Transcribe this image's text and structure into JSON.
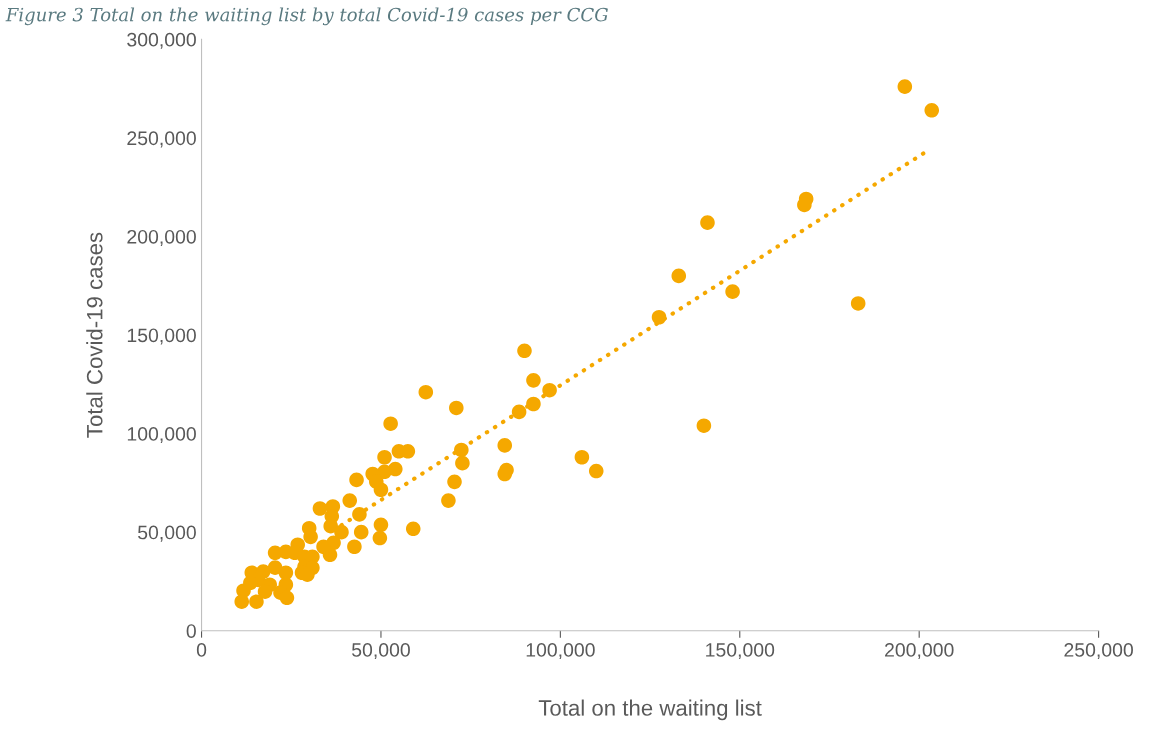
{
  "chart_data": {
    "type": "scatter",
    "title": "Figure 3 Total on the waiting list by total Covid-19 cases per CCG",
    "xlabel": "Total on the waiting list",
    "ylabel": "Total Covid-19 cases",
    "series": [
      {
        "color": "#f5a800",
        "marker": "circle",
        "x": [
          196000,
          203500,
          168500,
          168000,
          141000,
          133000,
          148000,
          183000,
          127500,
          140000,
          90000,
          92500,
          97000,
          92500,
          88500,
          62500,
          71000,
          106000,
          110000,
          84500,
          85000,
          84500,
          72400,
          72700,
          70500,
          68800,
          59000,
          52700,
          55000,
          57500,
          54000,
          51000,
          51000,
          47700,
          48700,
          50000,
          43200,
          41300,
          44000,
          33000,
          36600,
          36300,
          36000,
          30000,
          39000,
          44500,
          50000,
          49700,
          42600,
          35800,
          36800,
          34000,
          30400,
          26800,
          20500,
          23500,
          26000,
          28700,
          30900,
          28700,
          30900,
          28000,
          29500,
          14000,
          17200,
          20500,
          23500,
          15800,
          19000,
          23500,
          11700,
          11200,
          15300,
          22000,
          23800,
          17700,
          13600
        ],
        "values": [
          276000,
          264000,
          219000,
          216000,
          207000,
          180000,
          172000,
          166000,
          159000,
          104000,
          142000,
          127000,
          122000,
          115000,
          111000,
          121000,
          113000,
          88000,
          81000,
          94000,
          81500,
          79500,
          91700,
          85000,
          75500,
          66000,
          51700,
          105000,
          91000,
          91000,
          82000,
          88000,
          80600,
          79500,
          75600,
          71500,
          76500,
          66000,
          59000,
          62000,
          63000,
          58000,
          53000,
          52000,
          50000,
          50000,
          53700,
          47000,
          42600,
          38500,
          44600,
          42600,
          47600,
          43600,
          39500,
          40000,
          39500,
          37500,
          37500,
          32400,
          31900,
          29400,
          28400,
          29400,
          30000,
          32000,
          29400,
          25800,
          23300,
          23300,
          20300,
          14700,
          14700,
          19300,
          16700,
          19800,
          24300
        ]
      },
      {
        "type": "line",
        "color": "#f5a800",
        "line_style": "dotted",
        "marker": "none",
        "x": [
          39000,
          201500
        ],
        "values": [
          53500,
          242500
        ]
      }
    ],
    "xlim": [
      0,
      250000
    ],
    "ylim": [
      0,
      300000
    ],
    "xticks": [
      0,
      {
        "value": 50000,
        "label": "50,000"
      },
      {
        "value": 100000,
        "label": "100,000"
      },
      {
        "value": 150000,
        "label": "150,000"
      },
      {
        "value": 200000,
        "label": "200,000"
      },
      {
        "value": 250000,
        "label": "250,000"
      }
    ],
    "yticks": [
      0,
      {
        "value": 50000,
        "label": "50,000"
      },
      {
        "value": 100000,
        "label": "100,000"
      },
      {
        "value": 150000,
        "label": "150,000"
      },
      {
        "value": 200000,
        "label": "200,000"
      },
      {
        "value": 250000,
        "label": "250,000"
      },
      {
        "value": 300000,
        "label": "300,000"
      }
    ],
    "grid": false,
    "legend": false
  }
}
